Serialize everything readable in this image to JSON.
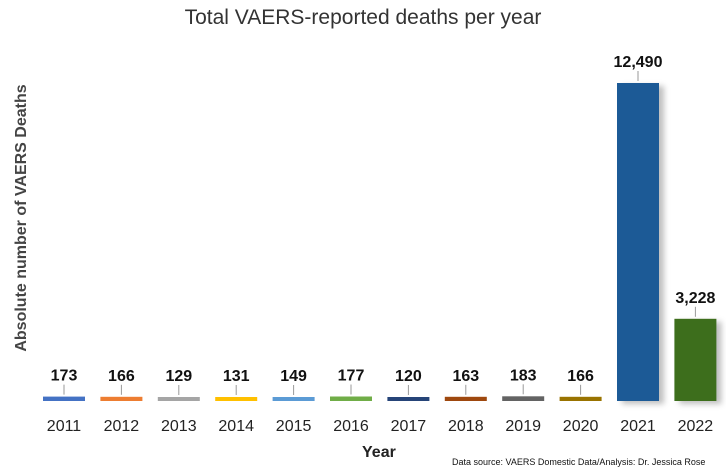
{
  "chart_data": {
    "type": "bar",
    "title": "Total VAERS-reported deaths per year",
    "xlabel": "Year",
    "ylabel": "Absolute number of VAERS Deaths",
    "categories": [
      "2011",
      "2012",
      "2013",
      "2014",
      "2015",
      "2016",
      "2017",
      "2018",
      "2019",
      "2020",
      "2021",
      "2022"
    ],
    "values": [
      173,
      166,
      129,
      131,
      149,
      177,
      120,
      163,
      183,
      166,
      12490,
      3228
    ],
    "data_labels": [
      "173",
      "166",
      "129",
      "131",
      "149",
      "177",
      "120",
      "163",
      "183",
      "166",
      "12,490",
      "3,228"
    ],
    "colors": [
      "#4472c4",
      "#ed7d31",
      "#a5a5a5",
      "#ffc000",
      "#5b9bd5",
      "#70ad47",
      "#264478",
      "#9e480e",
      "#636363",
      "#997300",
      "#1f5a96",
      "#3c6e1f"
    ],
    "ylim": [
      0,
      12490
    ],
    "grid": false,
    "legend": "none"
  },
  "source_note": "Data source: VAERS Domestic Data/Analysis: Dr. Jessica Rose"
}
